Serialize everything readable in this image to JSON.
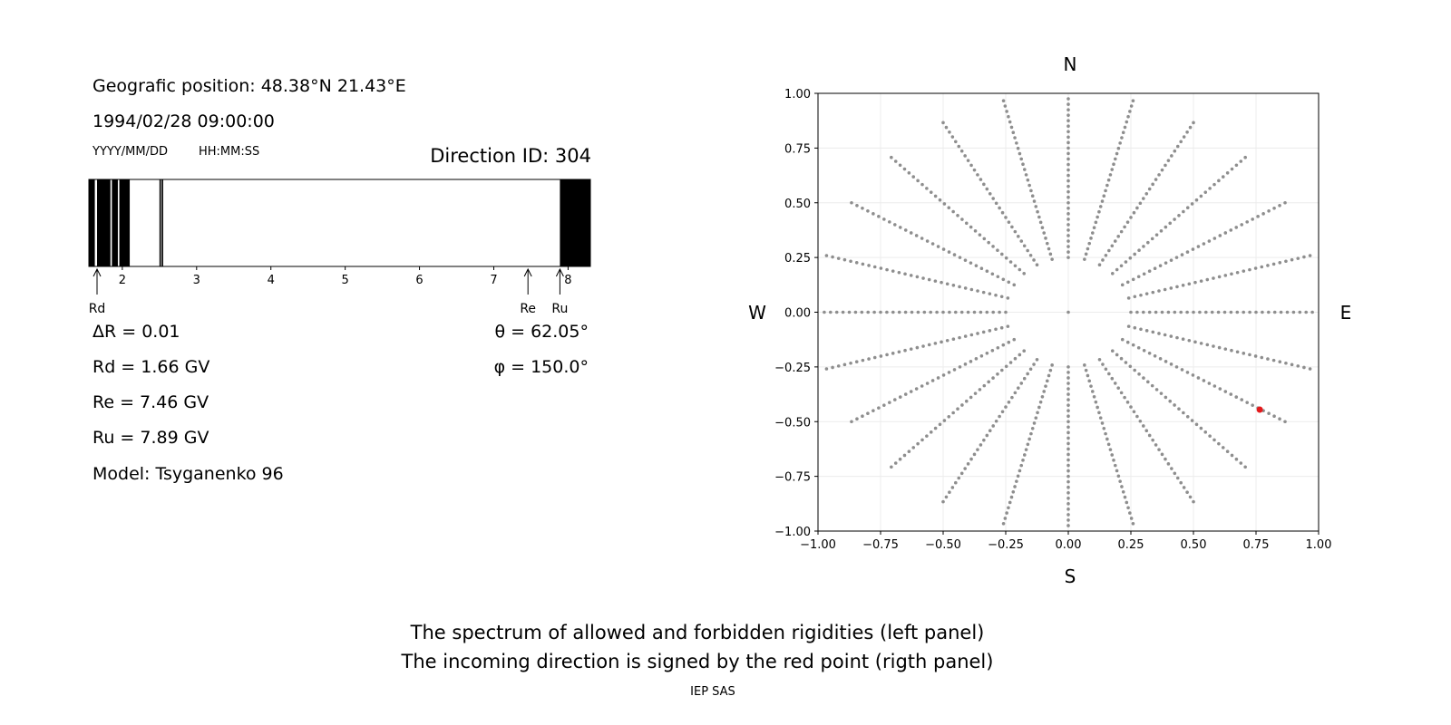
{
  "info": {
    "position": "Geografic position: 48.38°N 21.43°E",
    "datetime": "1994/02/28 09:00:00",
    "date_format": "YYYY/MM/DD",
    "time_format": "HH:MM:SS",
    "direction_id": "Direction ID: 304",
    "delta_r": "ΔR = 0.01",
    "rd": "Rd = 1.66 GV",
    "re": "Re = 7.46 GV",
    "ru": "Ru = 7.89 GV",
    "model": "Model: Tsyganenko 96",
    "theta": "θ = 62.05°",
    "phi": "φ = 150.0°"
  },
  "spectrum": {
    "x_range": [
      1.55,
      8.3
    ],
    "ticks": [
      "2",
      "3",
      "4",
      "5",
      "6",
      "7",
      "8"
    ],
    "forbidden_bands": [
      [
        1.55,
        1.63
      ],
      [
        1.66,
        1.84
      ],
      [
        1.86,
        1.94
      ],
      [
        1.96,
        2.1
      ],
      [
        2.5,
        2.52
      ],
      [
        2.53,
        2.55
      ],
      [
        7.89,
        8.3
      ]
    ],
    "markers": [
      {
        "label": "Rd",
        "value": 1.66
      },
      {
        "label": "Re",
        "value": 7.46
      },
      {
        "label": "Ru",
        "value": 7.89
      }
    ]
  },
  "chart_data": {
    "type": "scatter",
    "xlim": [
      -1.0,
      1.0
    ],
    "ylim": [
      -1.0,
      1.0
    ],
    "x_ticks": [
      "−1.00",
      "−0.75",
      "−0.50",
      "−0.25",
      "0.00",
      "0.25",
      "0.50",
      "0.75",
      "1.00"
    ],
    "y_ticks": [
      "1.00",
      "0.75",
      "0.50",
      "0.25",
      "0.00",
      "−0.25",
      "−0.50",
      "−0.75",
      "−1.00"
    ],
    "compass": {
      "north": "N",
      "south": "S",
      "west": "W",
      "east": "E"
    },
    "grid": true,
    "grid_description": "polar grid of directions: 24 azimuths every 15 deg, radial samples r=0.25..1.0; center point at origin",
    "azimuth_step_deg": 15,
    "r_min": 0.25,
    "r_max": 1.0,
    "r_step": 0.025,
    "point_color": "#8e8e8e",
    "highlight": {
      "x": 0.765,
      "y": -0.445,
      "color": "#e41a1c"
    }
  },
  "footer": {
    "line1": "The spectrum of allowed and forbidden rigidities (left panel)",
    "line2": "The incoming direction is signed by the red point (rigth panel)",
    "credit": "IEP SAS"
  }
}
